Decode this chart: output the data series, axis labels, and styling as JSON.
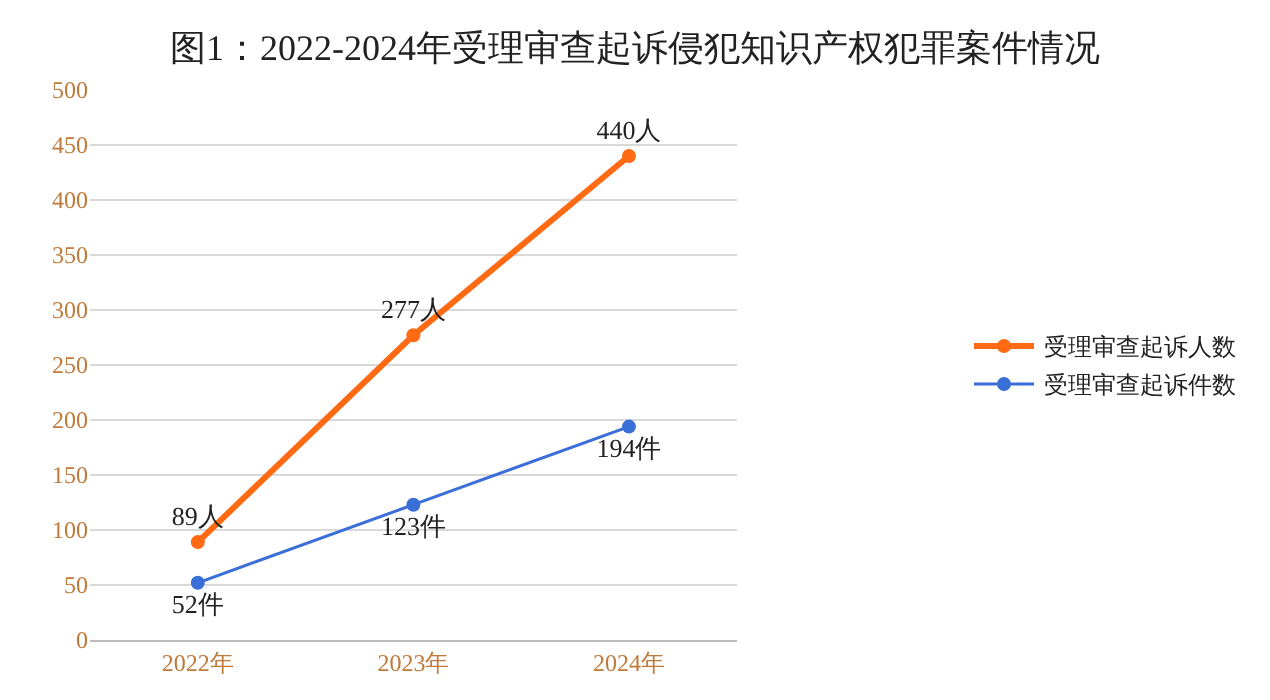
{
  "chart_data": {
    "type": "line",
    "title": "图1：2022-2024年受理审查起诉侵犯知识产权犯罪案件情况",
    "categories": [
      "2022年",
      "2023年",
      "2024年"
    ],
    "series": [
      {
        "name": "受理审查起诉人数",
        "color": "#ff6a13",
        "values": [
          89,
          277,
          440
        ],
        "value_labels": [
          "89人",
          "277人",
          "440人"
        ]
      },
      {
        "name": "受理审查起诉件数",
        "color": "#3a6fd8",
        "values": [
          52,
          123,
          194
        ],
        "value_labels": [
          "52件",
          "123件",
          "194件"
        ]
      }
    ],
    "ylim": [
      0,
      500
    ],
    "yticks": [
      0,
      50,
      100,
      150,
      200,
      250,
      300,
      350,
      400,
      450,
      500
    ],
    "grid": "y",
    "legend": "right",
    "marker": "circle",
    "line_style": "solid"
  }
}
